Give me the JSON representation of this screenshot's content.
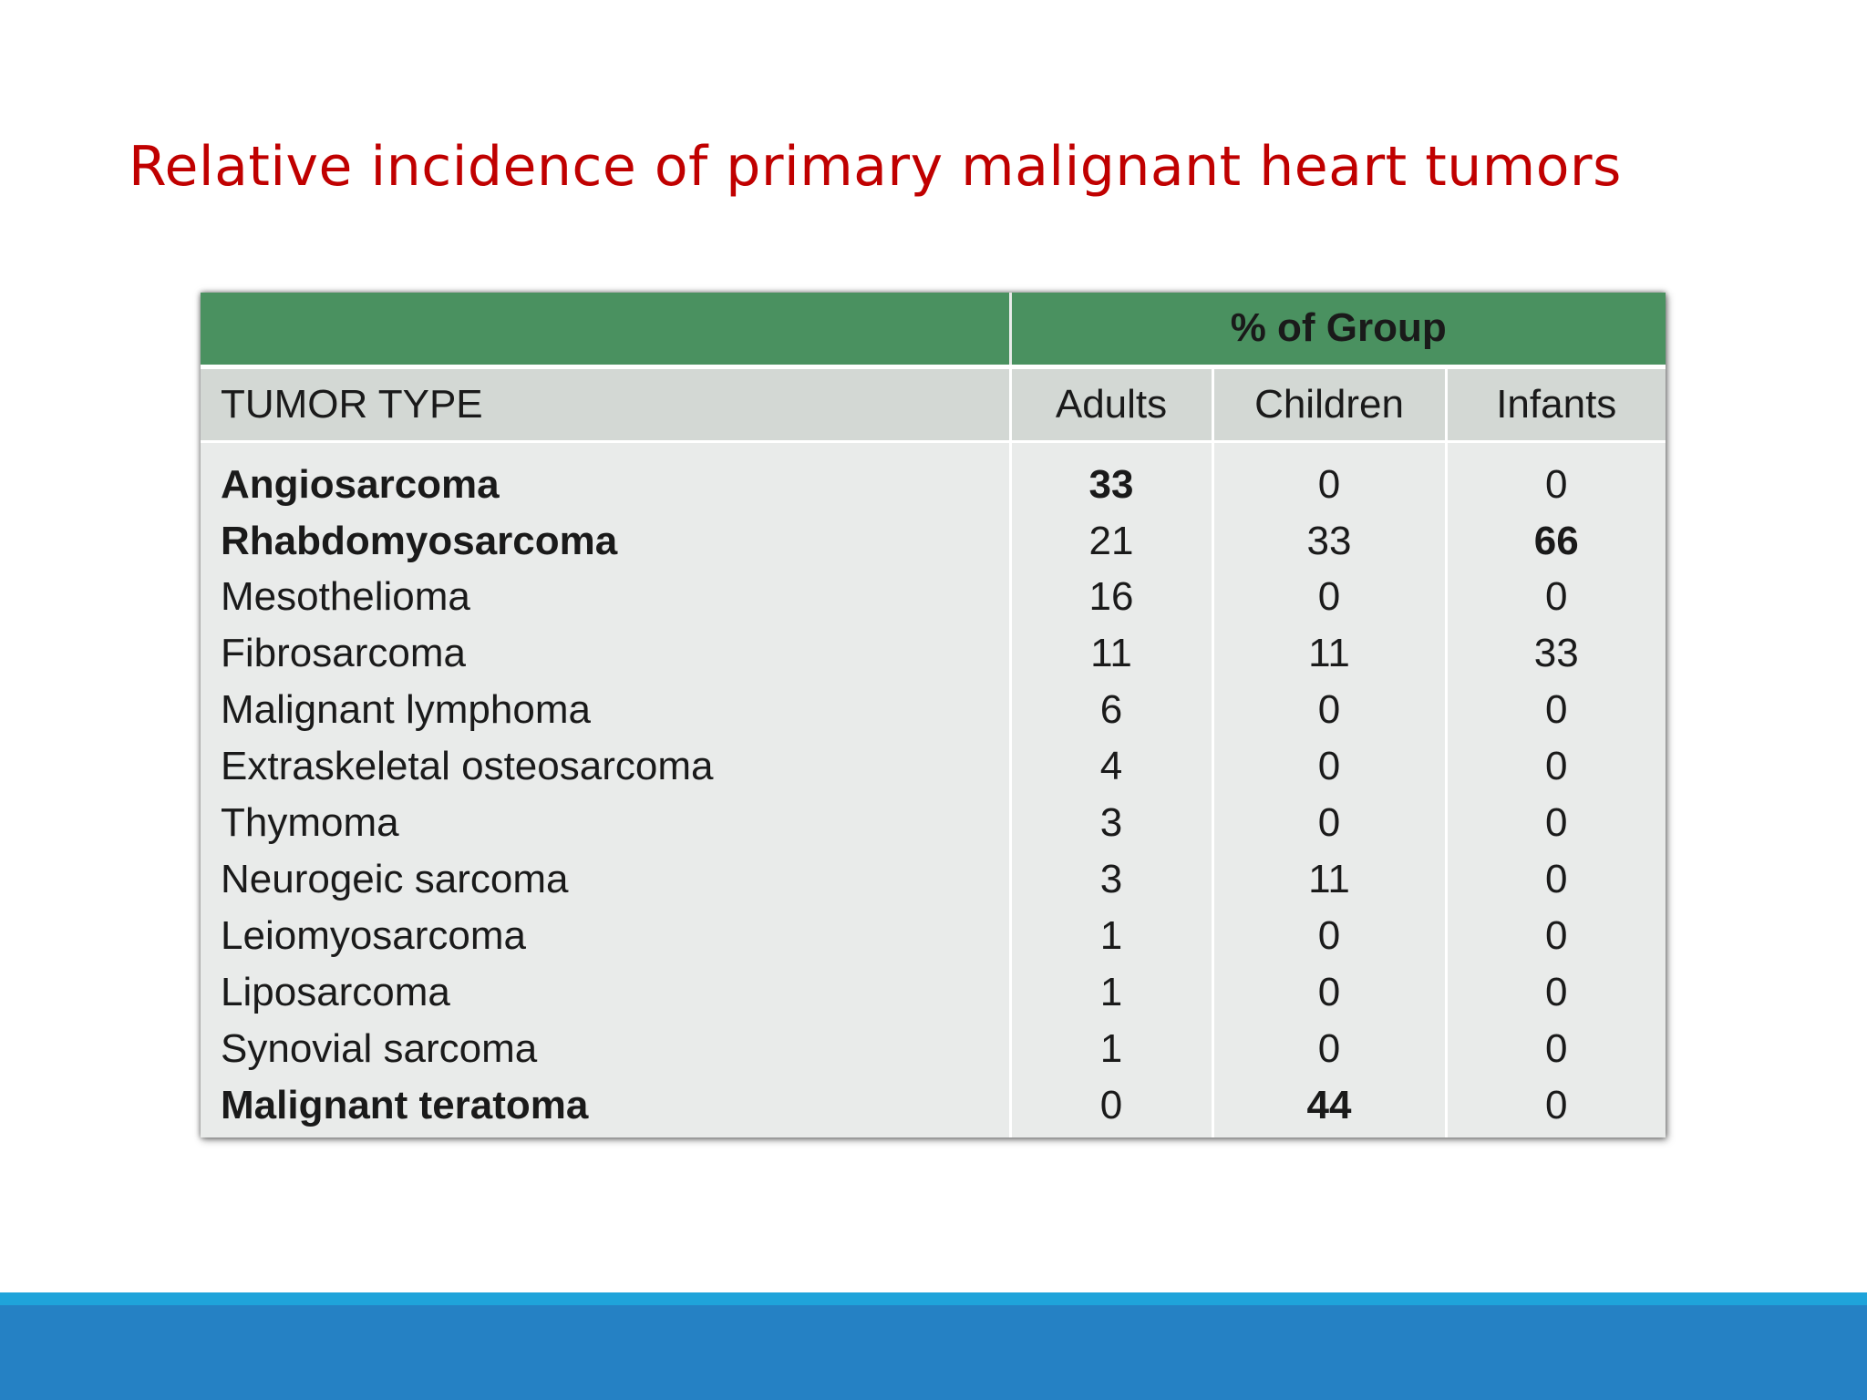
{
  "slide": {
    "title": "Relative incidence of primary malignant heart tumors"
  },
  "table": {
    "group_header": "% of Group",
    "columns": [
      "TUMOR TYPE",
      "Adults",
      "Children",
      "Infants"
    ],
    "rows": [
      {
        "type": "Angiosarcoma",
        "adults": "33",
        "children": "0",
        "infants": "0",
        "bold_type": true,
        "bold_adults": true,
        "bold_children": false,
        "bold_infants": false
      },
      {
        "type": "Rhabdomyosarcoma",
        "adults": "21",
        "children": "33",
        "infants": "66",
        "bold_type": true,
        "bold_adults": false,
        "bold_children": false,
        "bold_infants": true
      },
      {
        "type": "Mesothelioma",
        "adults": "16",
        "children": "0",
        "infants": "0",
        "bold_type": false,
        "bold_adults": false,
        "bold_children": false,
        "bold_infants": false
      },
      {
        "type": "Fibrosarcoma",
        "adults": "11",
        "children": "11",
        "infants": "33",
        "bold_type": false,
        "bold_adults": false,
        "bold_children": false,
        "bold_infants": false
      },
      {
        "type": "Malignant lymphoma",
        "adults": "6",
        "children": "0",
        "infants": "0",
        "bold_type": false,
        "bold_adults": false,
        "bold_children": false,
        "bold_infants": false
      },
      {
        "type": "Extraskeletal osteosarcoma",
        "adults": "4",
        "children": "0",
        "infants": "0",
        "bold_type": false,
        "bold_adults": false,
        "bold_children": false,
        "bold_infants": false
      },
      {
        "type": "Thymoma",
        "adults": "3",
        "children": "0",
        "infants": "0",
        "bold_type": false,
        "bold_adults": false,
        "bold_children": false,
        "bold_infants": false
      },
      {
        "type": "Neurogeic sarcoma",
        "adults": "3",
        "children": "11",
        "infants": "0",
        "bold_type": false,
        "bold_adults": false,
        "bold_children": false,
        "bold_infants": false
      },
      {
        "type": "Leiomyosarcoma",
        "adults": "1",
        "children": "0",
        "infants": "0",
        "bold_type": false,
        "bold_adults": false,
        "bold_children": false,
        "bold_infants": false
      },
      {
        "type": "Liposarcoma",
        "adults": "1",
        "children": "0",
        "infants": "0",
        "bold_type": false,
        "bold_adults": false,
        "bold_children": false,
        "bold_infants": false
      },
      {
        "type": "Synovial sarcoma",
        "adults": "1",
        "children": "0",
        "infants": "0",
        "bold_type": false,
        "bold_adults": false,
        "bold_children": false,
        "bold_infants": false
      },
      {
        "type": "Malignant teratoma",
        "adults": "0",
        "children": "44",
        "infants": "0",
        "bold_type": true,
        "bold_adults": false,
        "bold_children": true,
        "bold_infants": false
      }
    ]
  },
  "colors": {
    "title": "#c00000",
    "group_header_bg": "#4a9160",
    "column_header_bg": "#d3d8d4",
    "body_bg": "#e9ebea",
    "footer_band_light": "#1fa3da",
    "footer_band_dark": "#2581c4"
  }
}
